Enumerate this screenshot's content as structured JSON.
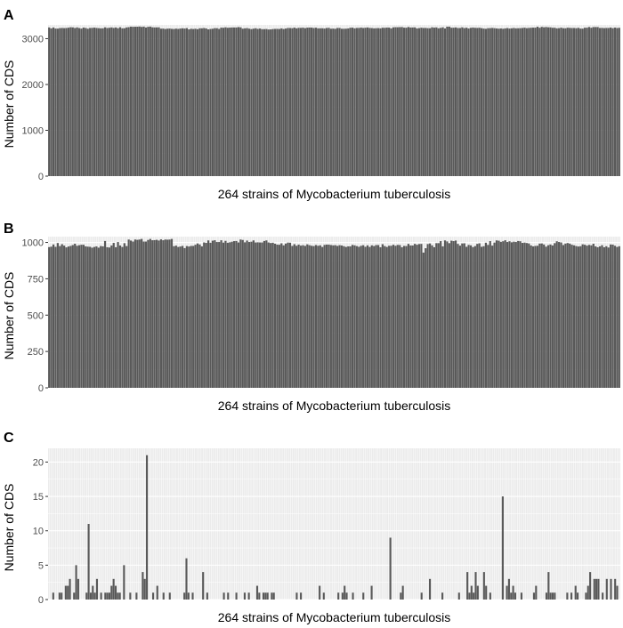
{
  "chart_data": [
    {
      "type": "bar",
      "panel_label": "A",
      "xlabel": "264 strains of Mycobacterium tuberculosis",
      "ylabel": "Number of CDS",
      "ylim": [
        0,
        3300
      ],
      "yticks": [
        0,
        1000,
        2000,
        3000
      ],
      "n_bars": 264,
      "values": [
        3245,
        3224,
        3244,
        3221,
        3219,
        3230,
        3233,
        3230,
        3233,
        3239,
        3249,
        3246,
        3232,
        3245,
        3231,
        3220,
        3242,
        3233,
        3217,
        3233,
        3235,
        3241,
        3234,
        3229,
        3225,
        3226,
        3247,
        3232,
        3237,
        3245,
        3234,
        3244,
        3227,
        3249,
        3226,
        3227,
        3245,
        3251,
        3262,
        3259,
        3260,
        3261,
        3265,
        3256,
        3263,
        3244,
        3258,
        3263,
        3248,
        3245,
        3246,
        3247,
        3218,
        3220,
        3211,
        3218,
        3221,
        3214,
        3211,
        3219,
        3213,
        3221,
        3226,
        3221,
        3230,
        3203,
        3216,
        3211,
        3217,
        3207,
        3226,
        3226,
        3232,
        3223,
        3203,
        3212,
        3216,
        3229,
        3228,
        3213,
        3241,
        3237,
        3248,
        3237,
        3241,
        3244,
        3244,
        3244,
        3252,
        3247,
        3218,
        3225,
        3230,
        3218,
        3209,
        3218,
        3227,
        3213,
        3221,
        3207,
        3208,
        3211,
        3200,
        3202,
        3210,
        3213,
        3214,
        3211,
        3224,
        3211,
        3221,
        3233,
        3232,
        3228,
        3241,
        3225,
        3236,
        3235,
        3240,
        3229,
        3240,
        3242,
        3241,
        3232,
        3239,
        3225,
        3226,
        3227,
        3221,
        3233,
        3236,
        3217,
        3220,
        3215,
        3233,
        3233,
        3216,
        3216,
        3218,
        3223,
        3238,
        3240,
        3225,
        3234,
        3234,
        3241,
        3233,
        3238,
        3244,
        3234,
        3231,
        3225,
        3228,
        3230,
        3225,
        3238,
        3236,
        3242,
        3241,
        3224,
        3247,
        3250,
        3249,
        3251,
        3253,
        3240,
        3239,
        3254,
        3243,
        3244,
        3246,
        3223,
        3230,
        3239,
        3233,
        3234,
        3229,
        3227,
        3248,
        3240,
        3246,
        3226,
        3235,
        3247,
        3223,
        3262,
        3262,
        3238,
        3239,
        3245,
        3232,
        3232,
        3247,
        3230,
        3239,
        3222,
        3236,
        3242,
        3236,
        3234,
        3238,
        3229,
        3220,
        3215,
        3228,
        3230,
        3234,
        3229,
        3223,
        3218,
        3223,
        3216,
        3224,
        3231,
        3221,
        3226,
        3233,
        3225,
        3227,
        3229,
        3233,
        3240,
        3229,
        3234,
        3238,
        3241,
        3240,
        3260,
        3238,
        3257,
        3248,
        3254,
        3248,
        3247,
        3237,
        3238,
        3225,
        3229,
        3240,
        3228,
        3227,
        3239,
        3235,
        3232,
        3233,
        3228,
        3236,
        3220,
        3219,
        3238,
        3239,
        3254,
        3238,
        3253,
        3253,
        3253,
        3233,
        3235,
        3230,
        3234,
        3233,
        3242,
        3228,
        3241,
        3232,
        3237
      ]
    },
    {
      "type": "bar",
      "panel_label": "B",
      "xlabel": "264 strains of Mycobacterium tuberculosis",
      "ylabel": "Number of CDS",
      "ylim": [
        0,
        1040
      ],
      "yticks": [
        0,
        250,
        500,
        750,
        1000
      ],
      "n_bars": 264,
      "values": [
        968,
        971,
        986,
        970,
        996,
        975,
        988,
        978,
        966,
        972,
        976,
        982,
        991,
        977,
        981,
        984,
        984,
        973,
        971,
        970,
        964,
        969,
        973,
        964,
        975,
        973,
        1010,
        967,
        965,
        979,
        997,
        967,
        1003,
        979,
        969,
        995,
        975,
        1020,
        1013,
        1006,
        1020,
        1018,
        1020,
        1024,
        1006,
        1006,
        1017,
        1024,
        1015,
        1016,
        1018,
        1013,
        1021,
        1015,
        1020,
        1019,
        1020,
        1024,
        974,
        978,
        969,
        972,
        976,
        961,
        975,
        972,
        976,
        976,
        984,
        993,
        986,
        973,
        1000,
        997,
        1014,
        998,
        1012,
        1015,
        1003,
        1003,
        1015,
        999,
        1011,
        998,
        1001,
        1005,
        1009,
        1010,
        1000,
        1020,
        1017,
        1001,
        1013,
        1003,
        1005,
        1014,
        1000,
        1001,
        1000,
        1000,
        1010,
        1014,
        1000,
        996,
        998,
        991,
        985,
        984,
        994,
        980,
        992,
        999,
        998,
        976,
        988,
        977,
        985,
        978,
        981,
        976,
        987,
        981,
        977,
        975,
        982,
        977,
        980,
        969,
        983,
        985,
        985,
        982,
        980,
        981,
        976,
        981,
        979,
        974,
        969,
        973,
        973,
        983,
        980,
        975,
        970,
        977,
        981,
        970,
        980,
        969,
        980,
        975,
        982,
        982,
        967,
        988,
        975,
        969,
        977,
        977,
        984,
        977,
        983,
        982,
        967,
        976,
        975,
        990,
        979,
        979,
        990,
        984,
        989,
        990,
        930,
        960,
        989,
        993,
        980,
        967,
        995,
        995,
        1009,
        973,
        1014,
        1007,
        995,
        1012,
        1009,
        1013,
        990,
        978,
        993,
        994,
        970,
        983,
        980,
        968,
        975,
        990,
        994,
        970,
        974,
        998,
        983,
        1009,
        978,
        999,
        1014,
        1012,
        1004,
        1008,
        1015,
        1003,
        1008,
        1001,
        1005,
        1003,
        1010,
        1008,
        997,
        999,
        996,
        993,
        979,
        973,
        976,
        977,
        992,
        993,
        986,
        971,
        981,
        986,
        979,
        995,
        1008,
        1003,
        1000,
        982,
        992,
        996,
        992,
        984,
        980,
        975,
        972,
        974,
        987,
        984,
        978,
        983,
        980,
        991,
        973,
        967,
        973,
        981,
        967,
        974,
        965,
        986,
        985,
        977,
        969,
        974
      ]
    },
    {
      "type": "bar",
      "panel_label": "C",
      "xlabel": "264 strains of Mycobacterium tuberculosis",
      "ylabel": "Number of CDS",
      "ylim": [
        0,
        22
      ],
      "yticks": [
        0,
        5,
        10,
        15,
        20
      ],
      "n_bars": 264,
      "values": [
        0,
        0,
        1,
        0,
        0,
        1,
        1,
        0,
        2,
        2,
        3,
        0,
        1,
        5,
        3,
        0,
        0,
        0,
        1,
        11,
        1,
        2,
        1,
        3,
        0,
        1,
        0,
        1,
        1,
        1,
        2,
        3,
        2,
        1,
        1,
        0,
        5,
        0,
        0,
        1,
        0,
        0,
        1,
        0,
        0,
        4,
        3,
        21,
        0,
        0,
        1,
        0,
        2,
        0,
        0,
        1,
        0,
        0,
        1,
        0,
        0,
        0,
        0,
        0,
        0,
        1,
        6,
        1,
        0,
        1,
        0,
        0,
        0,
        0,
        4,
        0,
        1,
        0,
        0,
        0,
        0,
        0,
        0,
        0,
        1,
        0,
        1,
        0,
        0,
        0,
        1,
        0,
        0,
        0,
        1,
        0,
        1,
        0,
        0,
        0,
        2,
        1,
        0,
        1,
        1,
        1,
        0,
        1,
        1,
        0,
        0,
        0,
        0,
        0,
        0,
        0,
        0,
        0,
        0,
        1,
        0,
        1,
        0,
        0,
        0,
        0,
        0,
        0,
        0,
        0,
        2,
        0,
        1,
        0,
        0,
        0,
        0,
        0,
        0,
        1,
        0,
        1,
        2,
        1,
        0,
        0,
        1,
        0,
        0,
        0,
        0,
        1,
        0,
        0,
        0,
        2,
        0,
        0,
        0,
        0,
        0,
        0,
        0,
        0,
        9,
        0,
        0,
        0,
        0,
        1,
        2,
        0,
        0,
        0,
        0,
        0,
        0,
        0,
        0,
        1,
        0,
        0,
        0,
        3,
        0,
        0,
        0,
        0,
        0,
        1,
        0,
        0,
        0,
        0,
        0,
        0,
        0,
        1,
        0,
        0,
        0,
        4,
        1,
        2,
        1,
        4,
        2,
        0,
        0,
        4,
        2,
        0,
        1,
        0,
        0,
        0,
        0,
        0,
        15,
        0,
        2,
        3,
        1,
        2,
        1,
        0,
        0,
        1,
        0,
        0,
        0,
        0,
        0,
        1,
        2,
        0,
        0,
        0,
        0,
        1,
        4,
        1,
        1,
        1,
        0,
        0,
        0,
        0,
        0,
        1,
        0,
        1,
        0,
        2,
        1,
        0,
        0,
        0,
        1,
        2,
        4,
        0,
        3,
        3,
        3,
        0,
        1,
        0,
        3,
        0,
        3,
        0,
        3,
        2,
        0
      ]
    }
  ]
}
